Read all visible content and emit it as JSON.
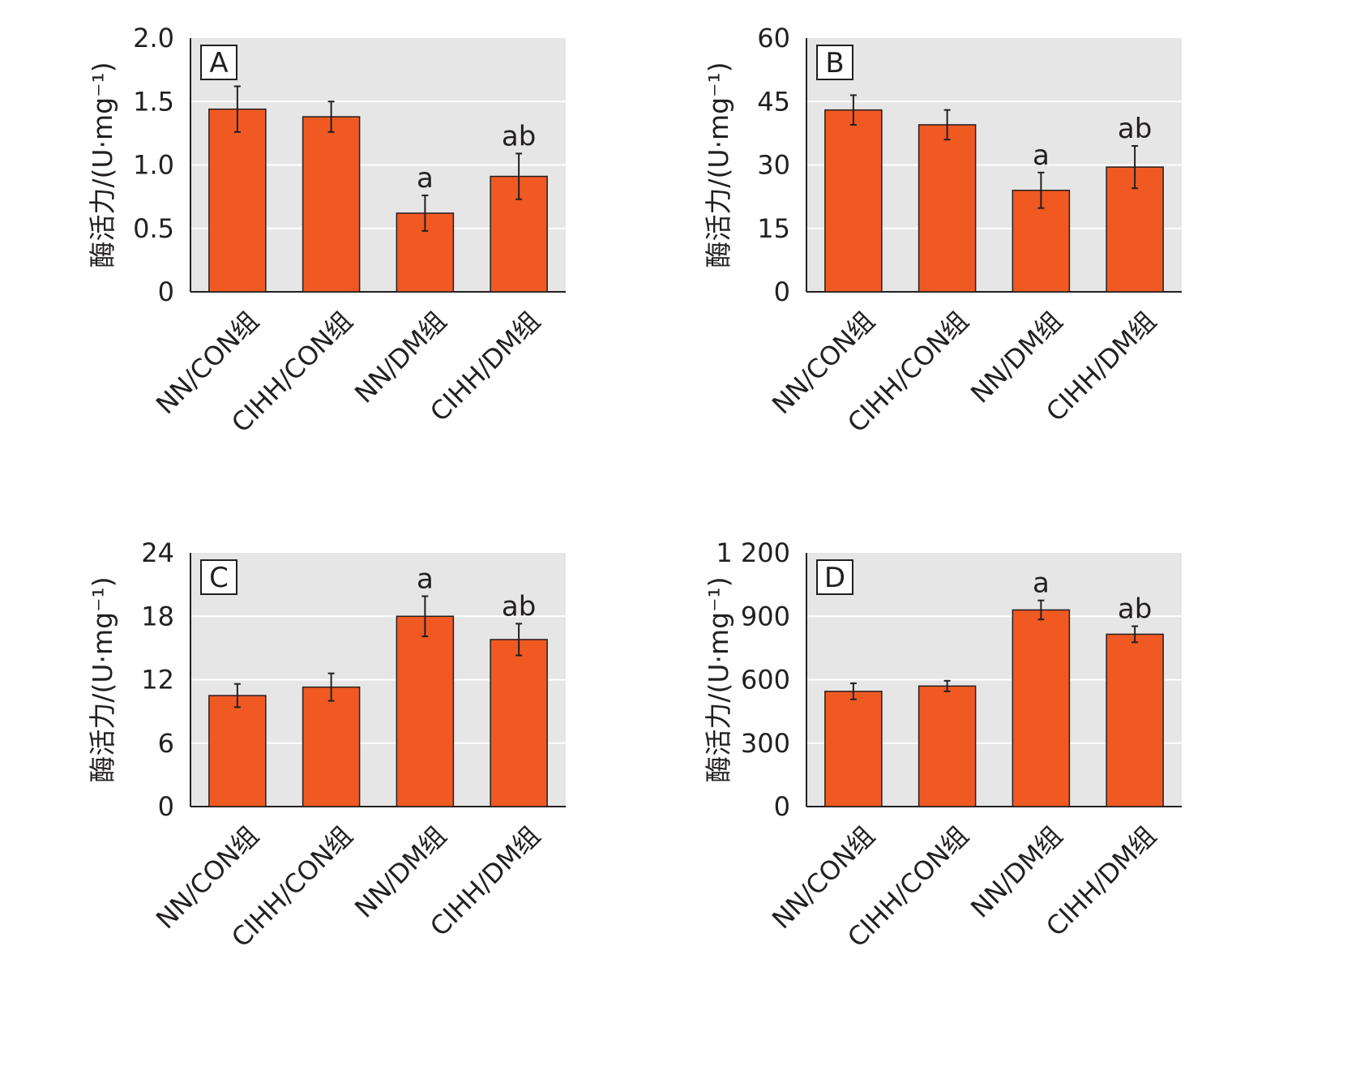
{
  "chart_data": [
    {
      "type": "bar",
      "panel_label": "A",
      "ylabel": "酶活力/(U·mg⁻¹)",
      "ylim": [
        0,
        2.0
      ],
      "yticks": [
        "0",
        "0.5",
        "1.0",
        "1.5",
        "2.0"
      ],
      "categories": [
        "NN/CON组",
        "CIHH/CON组",
        "NN/DM组",
        "CIHH/DM组"
      ],
      "values": [
        1.44,
        1.38,
        0.62,
        0.91
      ],
      "errors": [
        0.18,
        0.12,
        0.14,
        0.18
      ],
      "significance": [
        "",
        "",
        "a",
        "ab"
      ],
      "grid": true,
      "bar_color": "#f05a22",
      "plot_bg": "#e6e6e6"
    },
    {
      "type": "bar",
      "panel_label": "B",
      "ylabel": "酶活力/(U·mg⁻¹)",
      "ylim": [
        0,
        60
      ],
      "yticks": [
        "0",
        "15",
        "30",
        "45",
        "60"
      ],
      "categories": [
        "NN/CON组",
        "CIHH/CON组",
        "NN/DM组",
        "CIHH/DM组"
      ],
      "values": [
        43,
        39.5,
        24,
        29.5
      ],
      "errors": [
        3.5,
        3.5,
        4.2,
        5
      ],
      "significance": [
        "",
        "",
        "a",
        "ab"
      ],
      "grid": true,
      "bar_color": "#f05a22",
      "plot_bg": "#e6e6e6"
    },
    {
      "type": "bar",
      "panel_label": "C",
      "ylabel": "酶活力/(U·mg⁻¹)",
      "ylim": [
        0,
        24
      ],
      "yticks": [
        "0",
        "6",
        "12",
        "18",
        "24"
      ],
      "categories": [
        "NN/CON组",
        "CIHH/CON组",
        "NN/DM组",
        "CIHH/DM组"
      ],
      "values": [
        10.5,
        11.3,
        18,
        15.8
      ],
      "errors": [
        1.1,
        1.3,
        1.9,
        1.5
      ],
      "significance": [
        "",
        "",
        "a",
        "ab"
      ],
      "grid": true,
      "bar_color": "#f05a22",
      "plot_bg": "#e6e6e6"
    },
    {
      "type": "bar",
      "panel_label": "D",
      "ylabel": "酶活力/(U·mg⁻¹)",
      "ylim": [
        0,
        1200
      ],
      "yticks": [
        "0",
        "300",
        "600",
        "900",
        "1 200"
      ],
      "categories": [
        "NN/CON组",
        "CIHH/CON组",
        "NN/DM组",
        "CIHH/DM组"
      ],
      "values": [
        545,
        570,
        930,
        815
      ],
      "errors": [
        38,
        25,
        45,
        38
      ],
      "significance": [
        "",
        "",
        "a",
        "ab"
      ],
      "grid": true,
      "bar_color": "#f05a22",
      "plot_bg": "#e6e6e6"
    }
  ]
}
